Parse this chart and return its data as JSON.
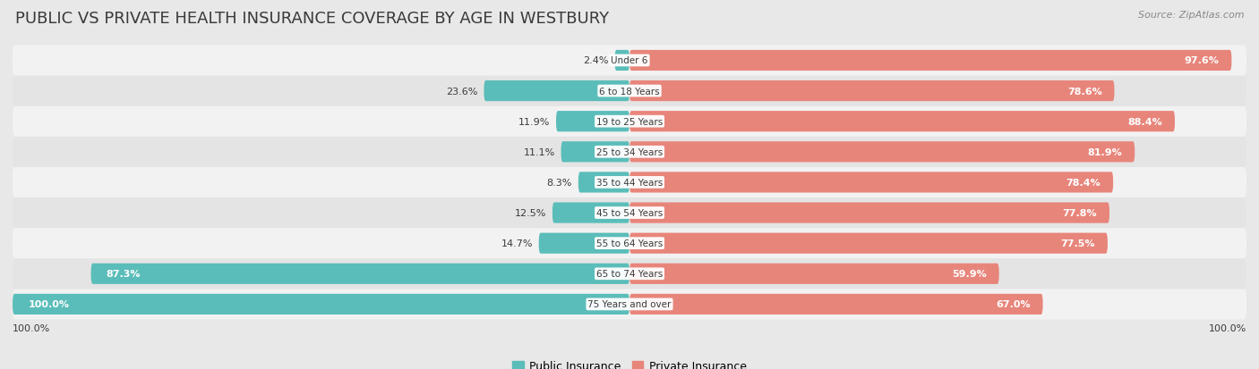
{
  "title": "PUBLIC VS PRIVATE HEALTH INSURANCE COVERAGE BY AGE IN WESTBURY",
  "source": "Source: ZipAtlas.com",
  "categories": [
    "Under 6",
    "6 to 18 Years",
    "19 to 25 Years",
    "25 to 34 Years",
    "35 to 44 Years",
    "45 to 54 Years",
    "55 to 64 Years",
    "65 to 74 Years",
    "75 Years and over"
  ],
  "public_values": [
    2.4,
    23.6,
    11.9,
    11.1,
    8.3,
    12.5,
    14.7,
    87.3,
    100.0
  ],
  "private_values": [
    97.6,
    78.6,
    88.4,
    81.9,
    78.4,
    77.8,
    77.5,
    59.9,
    67.0
  ],
  "public_color": "#5bbdb9",
  "private_color": "#e8857b",
  "bg_color": "#e8e8e8",
  "row_bg_light": "#f2f2f2",
  "row_bg_dark": "#e4e4e4",
  "title_color": "#3a3a3a",
  "label_dark": "#3a3a3a",
  "legend_public": "Public Insurance",
  "legend_private": "Private Insurance",
  "bar_height": 0.68,
  "max_val": 100,
  "title_fontsize": 13,
  "bar_fontsize": 8.0,
  "cat_fontsize": 7.5
}
